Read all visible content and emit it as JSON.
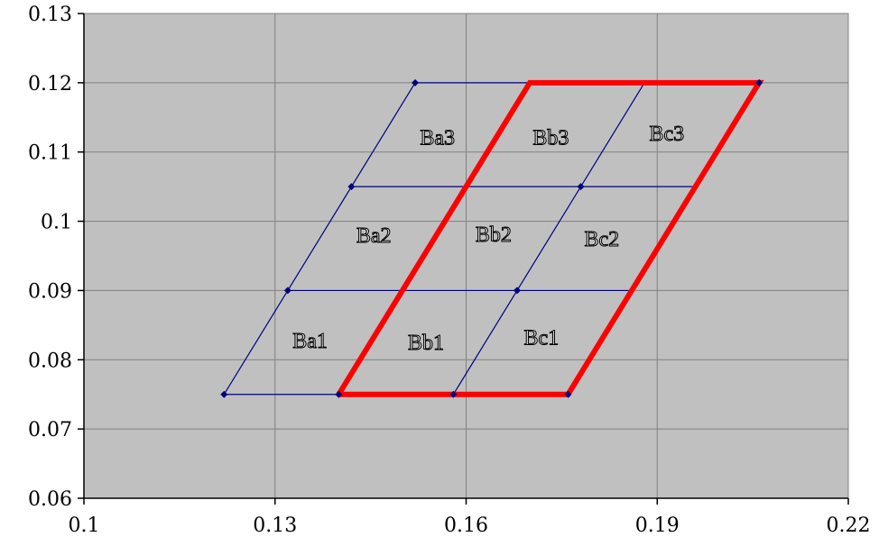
{
  "chart_data": {
    "type": "scatter",
    "title": "",
    "xlabel": "",
    "ylabel": "",
    "xlim": [
      0.1,
      0.22
    ],
    "ylim": [
      0.06,
      0.13
    ],
    "grid": true,
    "x_ticks": [
      "0.1",
      "0.13",
      "0.16",
      "0.19",
      "0.22"
    ],
    "y_ticks": [
      "0.06",
      "0.07",
      "0.08",
      "0.09",
      "0.1",
      "0.11",
      "0.12",
      "0.13"
    ],
    "x_tick_values": [
      0.1,
      0.13,
      0.16,
      0.19,
      0.22
    ],
    "y_tick_values": [
      0.06,
      0.07,
      0.08,
      0.09,
      0.1,
      0.11,
      0.12,
      0.13
    ],
    "grid_lines": [
      {
        "x": [
          0.122,
          0.176
        ],
        "y": [
          0.075,
          0.075
        ]
      },
      {
        "x": [
          0.132,
          0.186
        ],
        "y": [
          0.09,
          0.09
        ]
      },
      {
        "x": [
          0.142,
          0.196
        ],
        "y": [
          0.105,
          0.105
        ]
      },
      {
        "x": [
          0.152,
          0.206
        ],
        "y": [
          0.12,
          0.12
        ]
      },
      {
        "x": [
          0.122,
          0.152
        ],
        "y": [
          0.075,
          0.12
        ]
      },
      {
        "x": [
          0.14,
          0.17
        ],
        "y": [
          0.075,
          0.12
        ]
      },
      {
        "x": [
          0.158,
          0.188
        ],
        "y": [
          0.075,
          0.12
        ]
      },
      {
        "x": [
          0.176,
          0.206
        ],
        "y": [
          0.075,
          0.12
        ]
      }
    ],
    "markers": [
      {
        "x": 0.122,
        "y": 0.075
      },
      {
        "x": 0.14,
        "y": 0.075
      },
      {
        "x": 0.158,
        "y": 0.075
      },
      {
        "x": 0.176,
        "y": 0.075
      },
      {
        "x": 0.132,
        "y": 0.09
      },
      {
        "x": 0.168,
        "y": 0.09
      },
      {
        "x": 0.142,
        "y": 0.105
      },
      {
        "x": 0.178,
        "y": 0.105
      },
      {
        "x": 0.152,
        "y": 0.12
      },
      {
        "x": 0.206,
        "y": 0.12
      }
    ],
    "highlight": {
      "x": [
        0.14,
        0.176,
        0.206,
        0.17,
        0.14
      ],
      "y": [
        0.075,
        0.075,
        0.12,
        0.12,
        0.075
      ],
      "color": "#ff0000"
    },
    "cells": [
      {
        "label": "Ba1",
        "x": 0.1355,
        "y": 0.0828
      },
      {
        "label": "Bb1",
        "x": 0.1537,
        "y": 0.0825
      },
      {
        "label": "Bc1",
        "x": 0.1718,
        "y": 0.0832
      },
      {
        "label": "Ba2",
        "x": 0.1455,
        "y": 0.098
      },
      {
        "label": "Bb2",
        "x": 0.1643,
        "y": 0.0981
      },
      {
        "label": "Bc2",
        "x": 0.1813,
        "y": 0.0975
      },
      {
        "label": "Ba3",
        "x": 0.1555,
        "y": 0.1121
      },
      {
        "label": "Bb3",
        "x": 0.1733,
        "y": 0.1121
      },
      {
        "label": "Bc3",
        "x": 0.1915,
        "y": 0.1127
      }
    ],
    "colors": {
      "plot_background": "#c0c0c0",
      "gridline": "#808080",
      "series_line": "#000080",
      "marker": "#000080",
      "highlight": "#ff0000",
      "cell_label_fill": "#d9d9d9",
      "cell_label_stroke": "#000000"
    }
  }
}
